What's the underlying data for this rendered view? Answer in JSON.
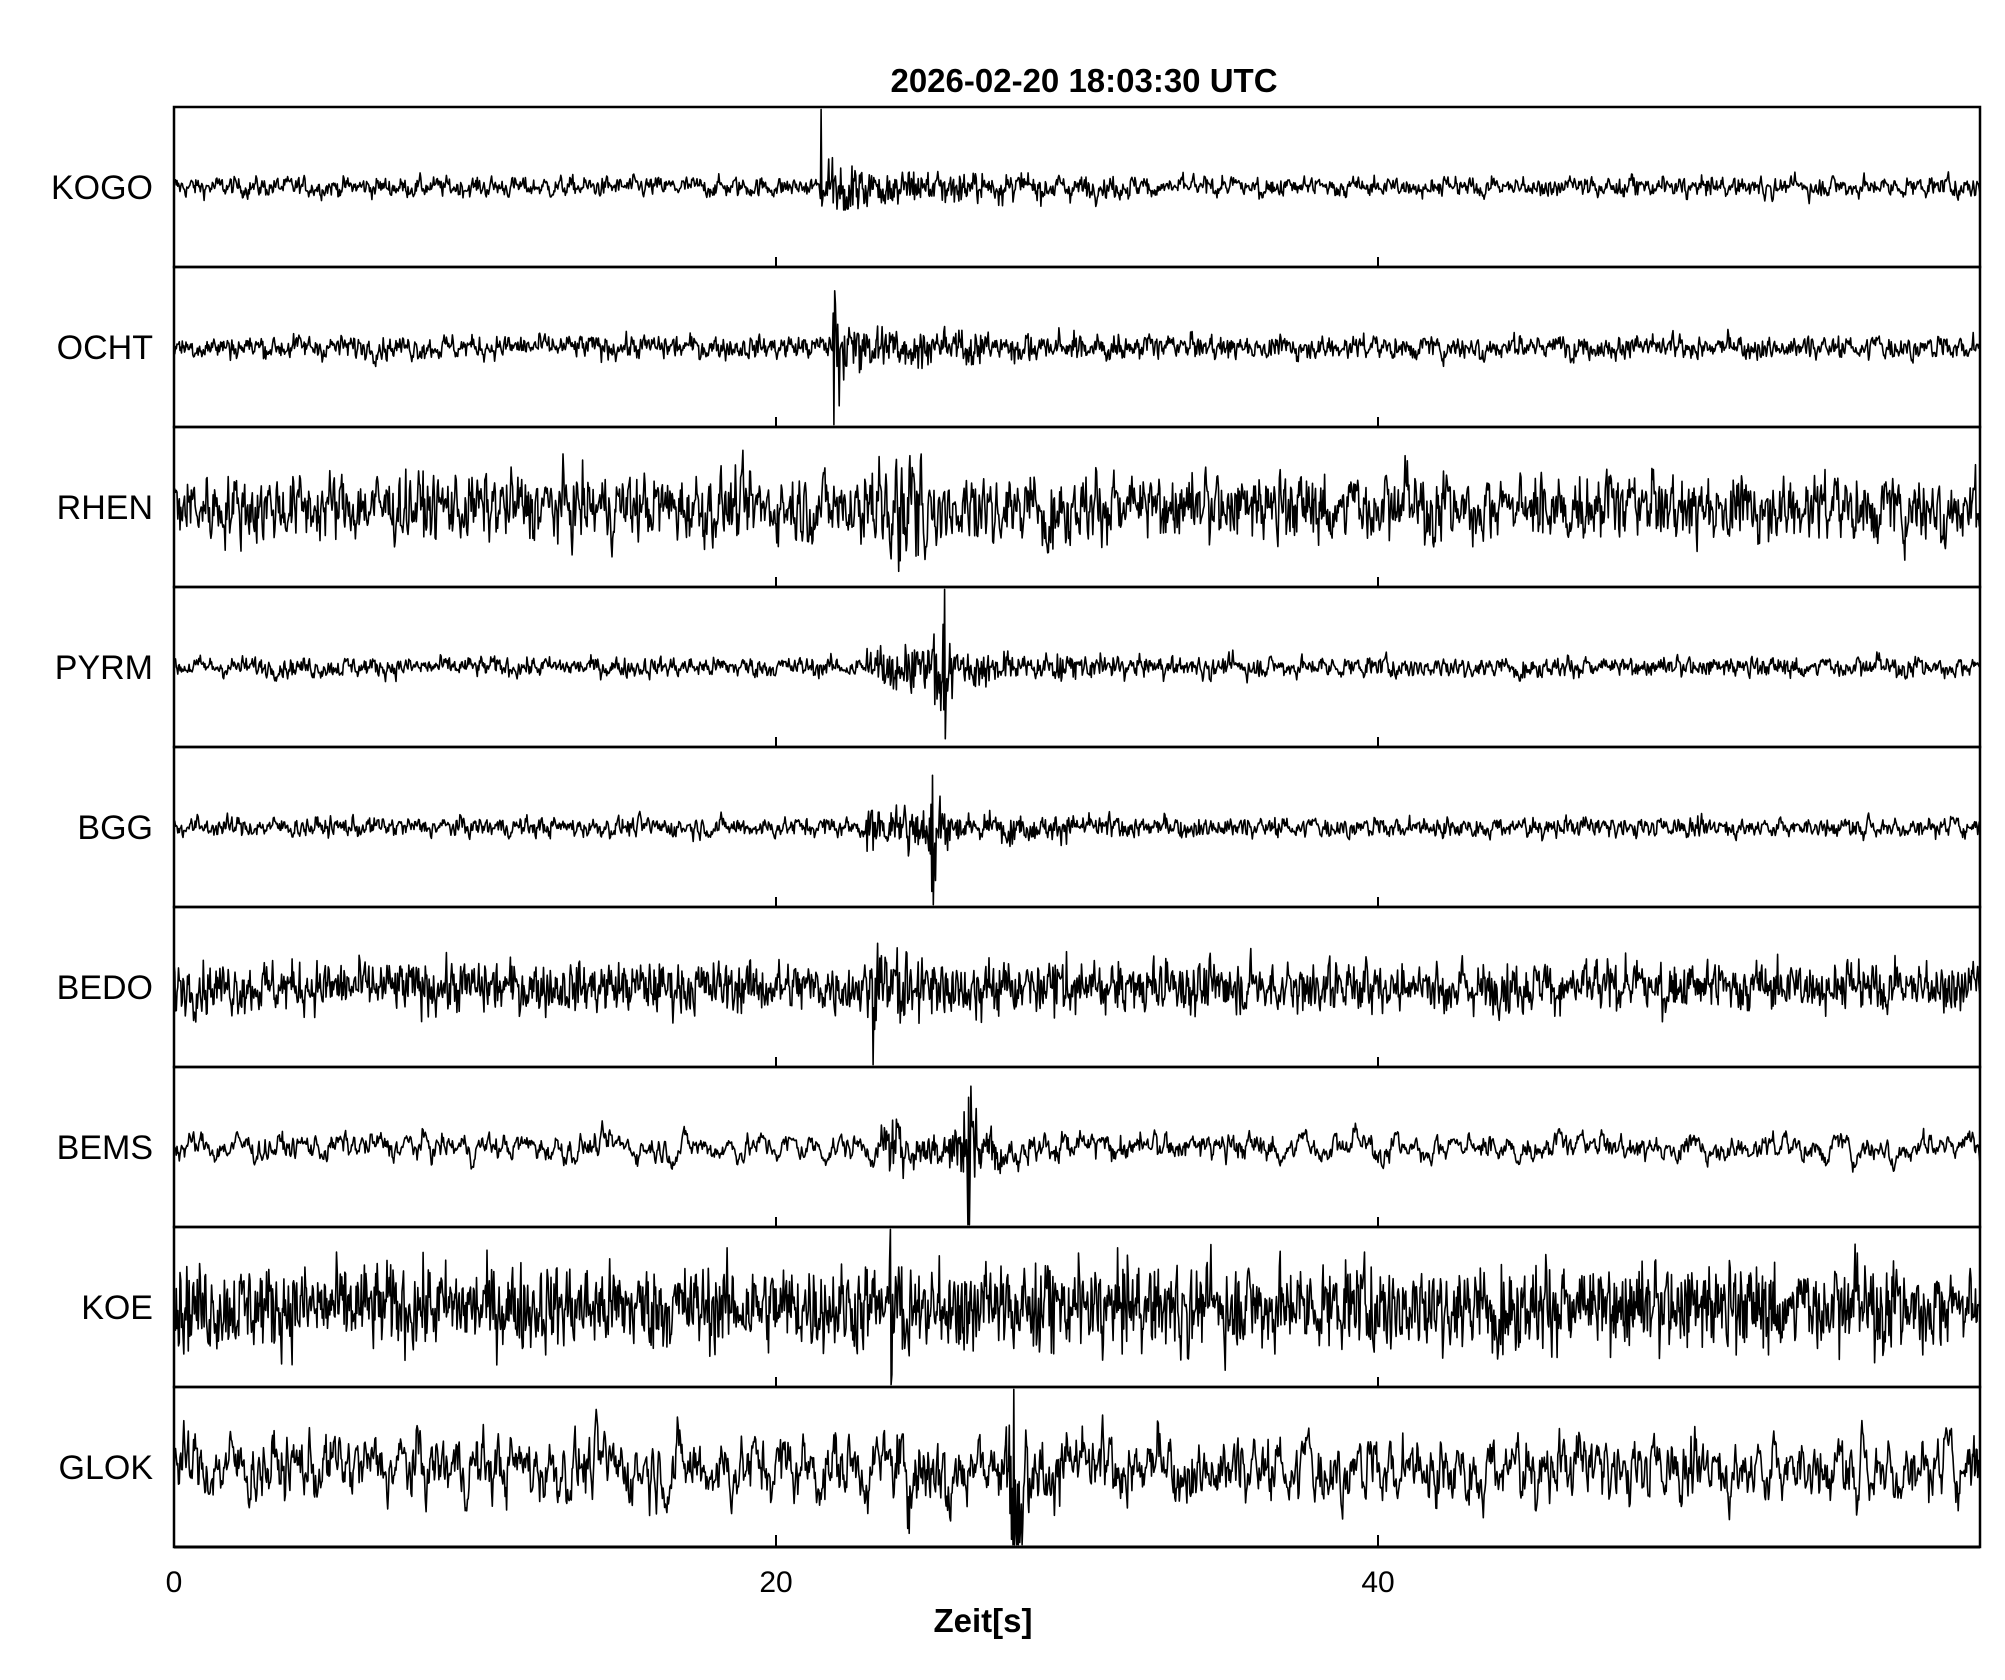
{
  "chart_data": {
    "type": "line",
    "title": "2026-02-20  18:03:30 UTC",
    "xlabel": "Zeit[s]",
    "ylabel": "",
    "xlim": [
      0,
      60
    ],
    "xticks": [
      0,
      20,
      40
    ],
    "xtick_labels": [
      "0",
      "20",
      "40"
    ],
    "grid": false,
    "line_color": "#000000",
    "series": [
      {
        "name": "KOGO",
        "onset_s": 21.5,
        "peak_s": 21.5,
        "peak_amp": 0.85,
        "coda_amp": 0.35,
        "noise": 0.05,
        "noise_smooth": 0.5
      },
      {
        "name": "OCHT",
        "onset_s": 21.9,
        "peak_s": 21.9,
        "peak_amp": 0.85,
        "coda_amp": 0.35,
        "noise": 0.06,
        "noise_smooth": 0.5
      },
      {
        "name": "RHEN",
        "onset_s": 22.3,
        "peak_s": 24.1,
        "peak_amp": 0.9,
        "coda_amp": 0.4,
        "noise": 0.16,
        "noise_smooth": 0.45
      },
      {
        "name": "PYRM",
        "onset_s": 23.0,
        "peak_s": 25.6,
        "peak_amp": 0.9,
        "coda_amp": 0.35,
        "noise": 0.05,
        "noise_smooth": 0.5
      },
      {
        "name": "BGG",
        "onset_s": 23.0,
        "peak_s": 25.2,
        "peak_amp": 0.9,
        "coda_amp": 0.3,
        "noise": 0.05,
        "noise_smooth": 0.5
      },
      {
        "name": "BEDO",
        "onset_s": 23.2,
        "peak_s": 23.2,
        "peak_amp": 0.95,
        "coda_amp": 0.35,
        "noise": 0.1,
        "noise_smooth": 0.3
      },
      {
        "name": "BEMS",
        "onset_s": 23.5,
        "peak_s": 26.4,
        "peak_amp": 0.9,
        "coda_amp": 0.3,
        "noise": 0.14,
        "noise_smooth": 0.8
      },
      {
        "name": "KOE",
        "onset_s": 23.8,
        "peak_s": 23.8,
        "peak_amp": 0.9,
        "coda_amp": 0.25,
        "noise": 0.15,
        "noise_smooth": 0.2
      },
      {
        "name": "GLOK",
        "onset_s": 24.0,
        "peak_s": 27.9,
        "peak_amp": 0.9,
        "coda_amp": 0.35,
        "noise": 0.25,
        "noise_smooth": 0.7
      }
    ]
  }
}
